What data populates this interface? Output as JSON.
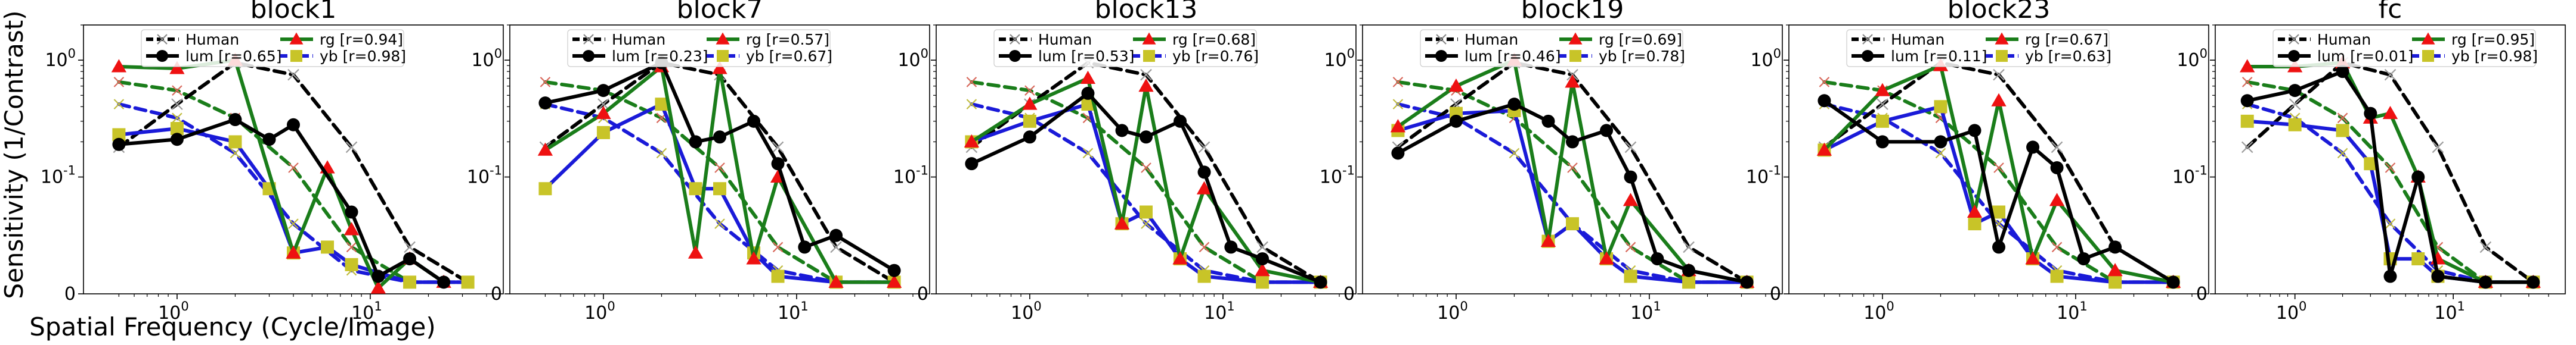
{
  "figure": {
    "ylabel": "Sensitivity (1/Contrast)",
    "xlabel": "Spatial Frequency (Cycle/Image)"
  },
  "style": {
    "colors": {
      "human": "#000000",
      "human_marker": "#888888",
      "lum": "#000000",
      "rg": "#1a7d1a",
      "rg_marker": "#ee1111",
      "yb": "#1a1ad8",
      "yb_marker": "#c8c428",
      "human_faint_lum": "#9c9c9c",
      "human_faint_rg": "#d8675a",
      "human_faint_yb": "#c0bc40"
    },
    "icons": {
      "human": "x-marker",
      "lum": "circle-marker",
      "rg": "triangle-marker",
      "yb": "square-marker"
    }
  },
  "legend_labels": {
    "human": "Human",
    "lum": "lum",
    "rg": "rg",
    "yb": "yb"
  },
  "chart_data": [
    {
      "type": "line",
      "title": "block1",
      "x_scale": "log",
      "xlim": [
        0.4,
        40
      ],
      "xticks": [
        "10^0",
        "10^1"
      ],
      "y_scale": "symlog",
      "ylim": [
        0,
        2
      ],
      "yticks": [
        "0",
        "10^-1",
        "10^0"
      ],
      "legend": "top-center",
      "x": [
        0.5,
        1,
        2,
        4,
        8,
        16,
        32
      ],
      "human": {
        "lum": [
          0.18,
          0.42,
          0.95,
          0.75,
          0.18,
          0.04,
          0.01
        ],
        "rg": [
          0.65,
          0.55,
          0.32,
          0.12,
          0.04,
          0.01,
          0.01
        ],
        "yb": [
          0.42,
          0.32,
          0.16,
          0.06,
          0.02,
          0.01,
          0.01
        ]
      },
      "series": [
        {
          "id": "lum",
          "r": "0.65",
          "x": [
            0.5,
            1,
            2,
            3,
            4,
            8,
            11,
            16,
            24
          ],
          "values": [
            0.19,
            0.21,
            0.31,
            0.21,
            0.28,
            0.07,
            0.015,
            0.03,
            0.01
          ]
        },
        {
          "id": "rg",
          "r": "0.94",
          "x": [
            0.5,
            1,
            2,
            4,
            6,
            8,
            11,
            16,
            24
          ],
          "values": [
            0.88,
            0.85,
            1.0,
            0.035,
            0.12,
            0.055,
            0.005,
            0.03,
            0.01
          ]
        },
        {
          "id": "yb",
          "r": "0.98",
          "x": [
            0.5,
            1,
            2,
            3,
            4,
            6,
            8,
            16,
            32
          ],
          "values": [
            0.23,
            0.26,
            0.2,
            0.09,
            0.035,
            0.04,
            0.025,
            0.01,
            0.01
          ]
        }
      ]
    },
    {
      "type": "line",
      "title": "block7",
      "x_scale": "log",
      "xlim": [
        0.4,
        40
      ],
      "xticks": [
        "10^0",
        "10^1"
      ],
      "y_scale": "symlog",
      "ylim": [
        0,
        2
      ],
      "yticks": [
        "0",
        "10^-1",
        "10^0"
      ],
      "legend": "top-center",
      "x": [
        0.5,
        1,
        2,
        4,
        8,
        16,
        32
      ],
      "human": {
        "lum": [
          0.18,
          0.42,
          0.95,
          0.75,
          0.18,
          0.04,
          0.01
        ],
        "rg": [
          0.65,
          0.55,
          0.32,
          0.12,
          0.04,
          0.01,
          0.01
        ],
        "yb": [
          0.42,
          0.32,
          0.16,
          0.06,
          0.02,
          0.01,
          0.01
        ]
      },
      "series": [
        {
          "id": "lum",
          "r": "0.23",
          "x": [
            0.5,
            1,
            2,
            3,
            4,
            6,
            8,
            11,
            16,
            32
          ],
          "values": [
            0.43,
            0.55,
            0.95,
            0.2,
            0.22,
            0.3,
            0.13,
            0.04,
            0.05,
            0.02
          ]
        },
        {
          "id": "rg",
          "r": "0.57",
          "x": [
            0.5,
            1,
            2,
            3,
            4,
            6,
            8,
            16,
            32
          ],
          "values": [
            0.17,
            0.35,
            0.88,
            0.035,
            0.85,
            0.03,
            0.1,
            0.01,
            0.01
          ]
        },
        {
          "id": "yb",
          "r": "0.67",
          "x": [
            0.5,
            1,
            2,
            3,
            4,
            6,
            8,
            16,
            32
          ],
          "values": [
            0.09,
            0.24,
            0.42,
            0.09,
            0.09,
            0.035,
            0.015,
            0.01,
            0.01
          ]
        }
      ]
    },
    {
      "type": "line",
      "title": "block13",
      "x_scale": "log",
      "xlim": [
        0.4,
        40
      ],
      "xticks": [
        "10^0",
        "10^1"
      ],
      "y_scale": "symlog",
      "ylim": [
        0,
        2
      ],
      "yticks": [
        "0",
        "10^-1",
        "10^0"
      ],
      "legend": "top-center",
      "x": [
        0.5,
        1,
        2,
        4,
        8,
        16,
        32
      ],
      "human": {
        "lum": [
          0.18,
          0.42,
          0.95,
          0.75,
          0.18,
          0.04,
          0.01
        ],
        "rg": [
          0.65,
          0.55,
          0.32,
          0.12,
          0.04,
          0.01,
          0.01
        ],
        "yb": [
          0.42,
          0.32,
          0.16,
          0.06,
          0.02,
          0.01,
          0.01
        ]
      },
      "series": [
        {
          "id": "lum",
          "r": "0.53",
          "x": [
            0.5,
            1,
            2,
            3,
            4,
            6,
            8,
            11,
            16,
            32
          ],
          "values": [
            0.13,
            0.22,
            0.52,
            0.25,
            0.22,
            0.3,
            0.11,
            0.04,
            0.03,
            0.01
          ]
        },
        {
          "id": "rg",
          "r": "0.68",
          "x": [
            0.5,
            1,
            2,
            3,
            4,
            6,
            8,
            16,
            32
          ],
          "values": [
            0.2,
            0.42,
            0.7,
            0.06,
            0.6,
            0.03,
            0.09,
            0.02,
            0.01
          ]
        },
        {
          "id": "yb",
          "r": "0.76",
          "x": [
            0.5,
            1,
            2,
            3,
            4,
            6,
            8,
            16,
            32
          ],
          "values": [
            0.2,
            0.3,
            0.42,
            0.06,
            0.07,
            0.03,
            0.015,
            0.01,
            0.01
          ]
        }
      ]
    },
    {
      "type": "line",
      "title": "block19",
      "x_scale": "log",
      "xlim": [
        0.4,
        40
      ],
      "xticks": [
        "10^0",
        "10^1"
      ],
      "y_scale": "symlog",
      "ylim": [
        0,
        2
      ],
      "yticks": [
        "0",
        "10^-1",
        "10^0"
      ],
      "legend": "top-center",
      "x": [
        0.5,
        1,
        2,
        4,
        8,
        16,
        32
      ],
      "human": {
        "lum": [
          0.18,
          0.42,
          0.95,
          0.75,
          0.18,
          0.04,
          0.01
        ],
        "rg": [
          0.65,
          0.55,
          0.32,
          0.12,
          0.04,
          0.01,
          0.01
        ],
        "yb": [
          0.42,
          0.32,
          0.16,
          0.06,
          0.02,
          0.01,
          0.01
        ]
      },
      "series": [
        {
          "id": "lum",
          "r": "0.46",
          "x": [
            0.5,
            1,
            2,
            3,
            4,
            6,
            8,
            11,
            16,
            32
          ],
          "values": [
            0.16,
            0.3,
            0.42,
            0.3,
            0.2,
            0.25,
            0.1,
            0.03,
            0.02,
            0.01
          ]
        },
        {
          "id": "rg",
          "r": "0.69",
          "x": [
            0.5,
            1,
            2,
            3,
            4,
            6,
            8,
            16,
            32
          ],
          "values": [
            0.27,
            0.6,
            1.0,
            0.045,
            0.65,
            0.03,
            0.08,
            0.02,
            0.01
          ]
        },
        {
          "id": "yb",
          "r": "0.78",
          "x": [
            0.5,
            1,
            2,
            3,
            4,
            6,
            8,
            16,
            32
          ],
          "values": [
            0.25,
            0.35,
            0.37,
            0.045,
            0.06,
            0.03,
            0.015,
            0.01,
            0.01
          ]
        }
      ]
    },
    {
      "type": "line",
      "title": "block23",
      "x_scale": "log",
      "xlim": [
        0.4,
        40
      ],
      "xticks": [
        "10^0",
        "10^1"
      ],
      "y_scale": "symlog",
      "ylim": [
        0,
        2
      ],
      "yticks": [
        "0",
        "10^-1",
        "10^0"
      ],
      "legend": "top-center",
      "x": [
        0.5,
        1,
        2,
        4,
        8,
        16,
        32
      ],
      "human": {
        "lum": [
          0.18,
          0.42,
          0.95,
          0.75,
          0.18,
          0.04,
          0.01
        ],
        "rg": [
          0.65,
          0.55,
          0.32,
          0.12,
          0.04,
          0.01,
          0.01
        ],
        "yb": [
          0.42,
          0.32,
          0.16,
          0.06,
          0.02,
          0.01,
          0.01
        ]
      },
      "series": [
        {
          "id": "lum",
          "r": "0.11",
          "x": [
            0.5,
            1,
            2,
            3,
            4,
            6,
            8,
            11,
            16,
            32
          ],
          "values": [
            0.45,
            0.2,
            0.2,
            0.25,
            0.04,
            0.18,
            0.12,
            0.03,
            0.04,
            0.01
          ]
        },
        {
          "id": "rg",
          "r": "0.67",
          "x": [
            0.5,
            1,
            2,
            3,
            4,
            6,
            8,
            16,
            32
          ],
          "values": [
            0.17,
            0.55,
            0.9,
            0.07,
            0.45,
            0.03,
            0.08,
            0.02,
            0.01
          ]
        },
        {
          "id": "yb",
          "r": "0.63",
          "x": [
            0.5,
            1,
            2,
            3,
            4,
            6,
            8,
            16,
            32
          ],
          "values": [
            0.17,
            0.3,
            0.4,
            0.06,
            0.07,
            0.03,
            0.015,
            0.01,
            0.01
          ]
        }
      ]
    },
    {
      "type": "line",
      "title": "fc",
      "x_scale": "log",
      "xlim": [
        0.4,
        40
      ],
      "xticks": [
        "10^0",
        "10^1"
      ],
      "y_scale": "symlog",
      "ylim": [
        0,
        2
      ],
      "yticks": [
        "0",
        "10^-1",
        "10^0"
      ],
      "legend": "top-center",
      "x": [
        0.5,
        1,
        2,
        4,
        8,
        16,
        32
      ],
      "human": {
        "lum": [
          0.18,
          0.42,
          0.95,
          0.75,
          0.18,
          0.04,
          0.01
        ],
        "rg": [
          0.65,
          0.55,
          0.32,
          0.12,
          0.04,
          0.01,
          0.01
        ],
        "yb": [
          0.42,
          0.32,
          0.16,
          0.06,
          0.02,
          0.01,
          0.01
        ]
      },
      "series": [
        {
          "id": "lum",
          "r": "0.01",
          "x": [
            0.5,
            1,
            2,
            3,
            4,
            6,
            8,
            16,
            32
          ],
          "values": [
            0.45,
            0.55,
            0.8,
            0.35,
            0.015,
            0.1,
            0.015,
            0.01,
            0.01
          ]
        },
        {
          "id": "rg",
          "r": "0.95",
          "x": [
            0.5,
            1,
            2,
            3,
            4,
            6,
            8,
            16,
            32
          ],
          "values": [
            0.88,
            0.88,
            0.95,
            0.32,
            0.35,
            0.1,
            0.03,
            0.01,
            0.01
          ]
        },
        {
          "id": "yb",
          "r": "0.98",
          "x": [
            0.5,
            1,
            2,
            3,
            4,
            6,
            8,
            16,
            32
          ],
          "values": [
            0.3,
            0.28,
            0.25,
            0.13,
            0.03,
            0.03,
            0.015,
            0.01,
            0.01
          ]
        }
      ]
    }
  ]
}
